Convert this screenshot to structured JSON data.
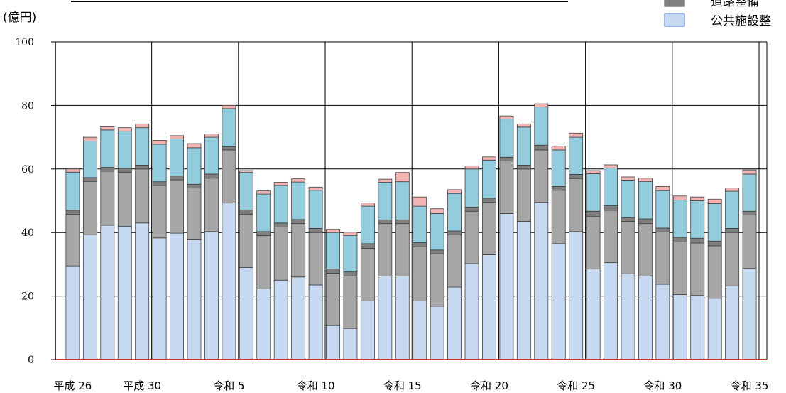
{
  "chart_data": {
    "type": "bar",
    "stacked": true,
    "unit_label": "(億円)",
    "ylim": [
      0,
      100
    ],
    "yticks": [
      0,
      20,
      40,
      60,
      80,
      100
    ],
    "grid": true,
    "legend_position": "top-right",
    "x_tick_labels": [
      {
        "index": 0,
        "label": "平成 26"
      },
      {
        "index": 4,
        "label": "平成 30"
      },
      {
        "index": 9,
        "label": "令和 5"
      },
      {
        "index": 14,
        "label": "令和 10"
      },
      {
        "index": 19,
        "label": "令和 15"
      },
      {
        "index": 24,
        "label": "令和 20"
      },
      {
        "index": 29,
        "label": "令和 25"
      },
      {
        "index": 34,
        "label": "令和 30"
      },
      {
        "index": 39,
        "label": "令和 35"
      }
    ],
    "series": [
      {
        "name": "公共施設整",
        "color": "#c6d9f1",
        "values": [
          29.5,
          39.3,
          42.3,
          42.0,
          43.0,
          38.3,
          39.8,
          37.7,
          40.3,
          49.3,
          29.0,
          22.3,
          25.0,
          26.0,
          23.5,
          10.7,
          9.8,
          18.5,
          26.3,
          26.3,
          18.5,
          16.8,
          22.8,
          30.2,
          33.0,
          46.0,
          43.5,
          49.5,
          36.5,
          40.3,
          28.5,
          30.5,
          27.0,
          26.3,
          23.7,
          20.5,
          20.2,
          19.3,
          23.2,
          28.7
        ]
      },
      {
        "color": "#a6a6a6",
        "values": [
          16.2,
          16.8,
          17.0,
          17.0,
          17.0,
          16.5,
          16.8,
          16.3,
          16.8,
          16.7,
          16.8,
          16.7,
          16.7,
          16.8,
          16.5,
          16.5,
          16.5,
          16.5,
          16.5,
          16.5,
          17.0,
          16.5,
          16.5,
          16.5,
          16.5,
          16.5,
          16.5,
          16.5,
          16.8,
          16.7,
          16.5,
          16.5,
          16.5,
          16.5,
          16.5,
          16.5,
          16.5,
          16.5,
          16.8,
          16.8
        ]
      },
      {
        "name": "道路整備",
        "color": "#7f7f7f",
        "values": [
          1.3,
          1.2,
          1.2,
          1.2,
          1.2,
          1.2,
          1.2,
          1.2,
          1.3,
          1.0,
          1.3,
          1.3,
          1.3,
          1.3,
          1.3,
          1.3,
          1.3,
          1.5,
          1.2,
          1.2,
          1.3,
          1.2,
          1.2,
          1.3,
          1.3,
          1.2,
          1.2,
          1.5,
          1.2,
          1.3,
          1.7,
          1.5,
          1.2,
          1.5,
          1.2,
          1.5,
          1.5,
          1.5,
          1.3,
          1.2
        ]
      },
      {
        "color": "#93cddd",
        "values": [
          12.0,
          11.5,
          11.8,
          11.7,
          11.8,
          11.8,
          11.7,
          11.5,
          11.6,
          12.0,
          11.8,
          11.8,
          11.8,
          11.8,
          12.0,
          11.5,
          11.5,
          11.8,
          11.8,
          12.0,
          11.5,
          11.5,
          11.8,
          12.0,
          12.0,
          12.0,
          12.0,
          12.0,
          11.5,
          11.7,
          11.8,
          11.8,
          11.8,
          11.8,
          11.8,
          11.7,
          11.8,
          11.8,
          11.7,
          11.7
        ]
      },
      {
        "color": "#f2b3b3",
        "values": [
          1.0,
          1.2,
          1.0,
          1.1,
          1.2,
          1.2,
          1.0,
          1.3,
          1.0,
          1.0,
          0.6,
          1.0,
          1.0,
          1.0,
          1.0,
          1.0,
          1.0,
          1.0,
          1.0,
          2.9,
          2.9,
          1.5,
          1.2,
          1.0,
          1.0,
          1.0,
          1.0,
          1.0,
          1.2,
          1.3,
          1.0,
          1.0,
          1.0,
          1.0,
          1.3,
          1.3,
          1.2,
          1.4,
          1.0,
          1.3
        ]
      }
    ]
  },
  "legend": {
    "items": [
      {
        "label": "道路整備",
        "color": "#7f7f7f"
      },
      {
        "label": "公共施設整",
        "color": "#c6d9f1"
      }
    ]
  }
}
